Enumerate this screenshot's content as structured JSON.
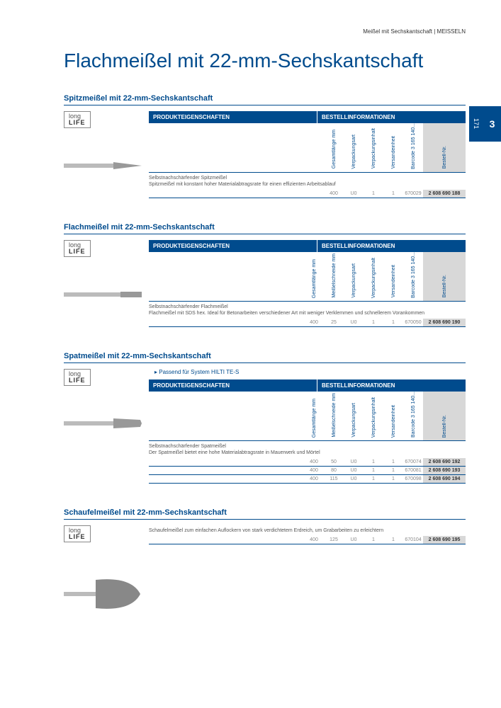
{
  "header": {
    "breadcrumb": "Meißel mit Sechskantschaft | MEISSELN"
  },
  "title": "Flachmeißel mit 22-mm-Sechskantschaft",
  "sidetab": {
    "chapter": "3",
    "page": "171"
  },
  "badge": {
    "line1": "long",
    "line2": "LIFE"
  },
  "tableHeaders": {
    "left": "PRODUKTEIGENSCHAFTEN",
    "right": "BESTELLINFORMATIONEN"
  },
  "cols": {
    "gesamt": "Gesamtlänge mm",
    "schneide": "Meißelschneide mm",
    "verpart": "Verpackungsart",
    "verpinh": "Verpackungsinhalt",
    "versand": "Versandeinheit",
    "barcode": "Barcode 3 165 140...",
    "bestell": "Bestell-Nr."
  },
  "sections": [
    {
      "title": "Spitzmeißel mit 22-mm-Sechskantschaft",
      "hasSchneide": false,
      "desc": "Selbstnachschärfender Spitzmeißel\nSpitzmeißel mit konstant hoher Materialabtragsrate für einen effizienten Arbeitsablauf",
      "rows": [
        {
          "gesamt": "400",
          "schneide": "",
          "verpart": "U0",
          "verpinh": "1",
          "versand": "1",
          "barcode": "670029",
          "bestell": "2 608 690 188"
        }
      ]
    },
    {
      "title": "Flachmeißel mit 22-mm-Sechskantschaft",
      "hasSchneide": true,
      "desc": "Selbstnachschärfender Flachmeißel\nFlachmeißel mit SDS hex. Ideal für Betonarbeiten verschiedener Art mit weniger Verklemmen und schnellerem Vorankommen",
      "rows": [
        {
          "gesamt": "400",
          "schneide": "25",
          "verpart": "U0",
          "verpinh": "1",
          "versand": "1",
          "barcode": "670050",
          "bestell": "2 608 690 190"
        }
      ]
    },
    {
      "title": "Spatmeißel mit 22-mm-Sechskantschaft",
      "hasSchneide": true,
      "note": "Passend für System HILTI TE-S",
      "desc": "Selbstnachschärfender Spatmeißel\nDer Spatmeißel bietet eine hohe Materialabtragsrate in Mauerwerk und Mörtel",
      "rows": [
        {
          "gesamt": "400",
          "schneide": "50",
          "verpart": "U0",
          "verpinh": "1",
          "versand": "1",
          "barcode": "670074",
          "bestell": "2 608 690 192"
        },
        {
          "gesamt": "400",
          "schneide": "80",
          "verpart": "U0",
          "verpinh": "1",
          "versand": "1",
          "barcode": "670081",
          "bestell": "2 608 690 193"
        },
        {
          "gesamt": "400",
          "schneide": "115",
          "verpart": "U0",
          "verpinh": "1",
          "versand": "1",
          "barcode": "670098",
          "bestell": "2 608 690 194"
        }
      ]
    },
    {
      "title": "Schaufelmeißel mit 22-mm-Sechskantschaft",
      "hasSchneide": true,
      "noHeader": true,
      "desc": "Schaufelmeißel zum einfachen Auflockern von stark verdichtetem Erdreich, um Grabarbeiten zu erleichtern",
      "rows": [
        {
          "gesamt": "400",
          "schneide": "125",
          "verpart": "U0",
          "verpinh": "1",
          "versand": "1",
          "barcode": "670104",
          "bestell": "2 608 690 195"
        }
      ]
    }
  ]
}
